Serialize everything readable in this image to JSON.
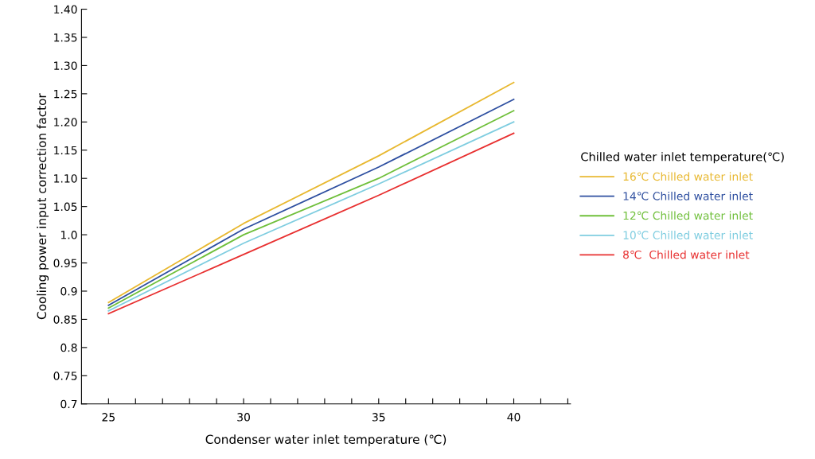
{
  "chart_data": {
    "type": "line",
    "xlabel": "Condenser water inlet temperature (℃)",
    "ylabel": "Cooling power input correction factor",
    "legend_title": "Chilled water inlet temperature(℃)",
    "x": [
      25,
      30,
      35,
      40
    ],
    "series": [
      {
        "name": "16℃ Chilled water inlet",
        "color": "#e8b830",
        "values": [
          0.88,
          1.02,
          1.14,
          1.27
        ]
      },
      {
        "name": "14℃ Chilled water inlet",
        "color": "#2e4fa0",
        "values": [
          0.875,
          1.01,
          1.12,
          1.24
        ]
      },
      {
        "name": "12℃ Chilled water inlet",
        "color": "#6fbf3a",
        "values": [
          0.87,
          1.0,
          1.1,
          1.22
        ]
      },
      {
        "name": "10℃ Chilled water inlet",
        "color": "#7fcde0",
        "values": [
          0.865,
          0.985,
          1.09,
          1.2
        ]
      },
      {
        "name": "8℃  Chilled water inlet",
        "color": "#e83030",
        "values": [
          0.86,
          0.965,
          1.07,
          1.18
        ]
      }
    ],
    "xlim": [
      24.0,
      42.1
    ],
    "xticks": [
      25,
      {
        "value": 26,
        "label": null
      },
      {
        "value": 27,
        "label": null
      },
      {
        "value": 28,
        "label": null
      },
      {
        "value": 29,
        "label": null
      },
      30,
      {
        "value": 31,
        "label": null
      },
      {
        "value": 32,
        "label": null
      },
      {
        "value": 33,
        "label": null
      },
      {
        "value": 34,
        "label": null
      },
      35,
      {
        "value": 36,
        "label": null
      },
      {
        "value": 37,
        "label": null
      },
      {
        "value": 38,
        "label": null
      },
      {
        "value": 39,
        "label": null
      },
      40,
      {
        "value": 41,
        "label": null
      },
      {
        "value": 42,
        "label": null
      }
    ],
    "ylim": [
      0.7,
      1.4
    ],
    "yticks": [
      {
        "value": 0.7,
        "label": "0.7"
      },
      0.75,
      {
        "value": 0.8,
        "label": "0.8"
      },
      0.85,
      {
        "value": 0.9,
        "label": "0.9"
      },
      0.95,
      {
        "value": 1.0,
        "label": "1.0"
      },
      1.05,
      {
        "value": 1.1,
        "label": "1.10"
      },
      1.15,
      {
        "value": 1.2,
        "label": "1.20"
      },
      1.25,
      {
        "value": 1.3,
        "label": "1.30"
      },
      1.35,
      {
        "value": 1.4,
        "label": "1.40"
      }
    ],
    "grid": false,
    "legend": "right",
    "marker": "none",
    "line_style": "solid"
  }
}
